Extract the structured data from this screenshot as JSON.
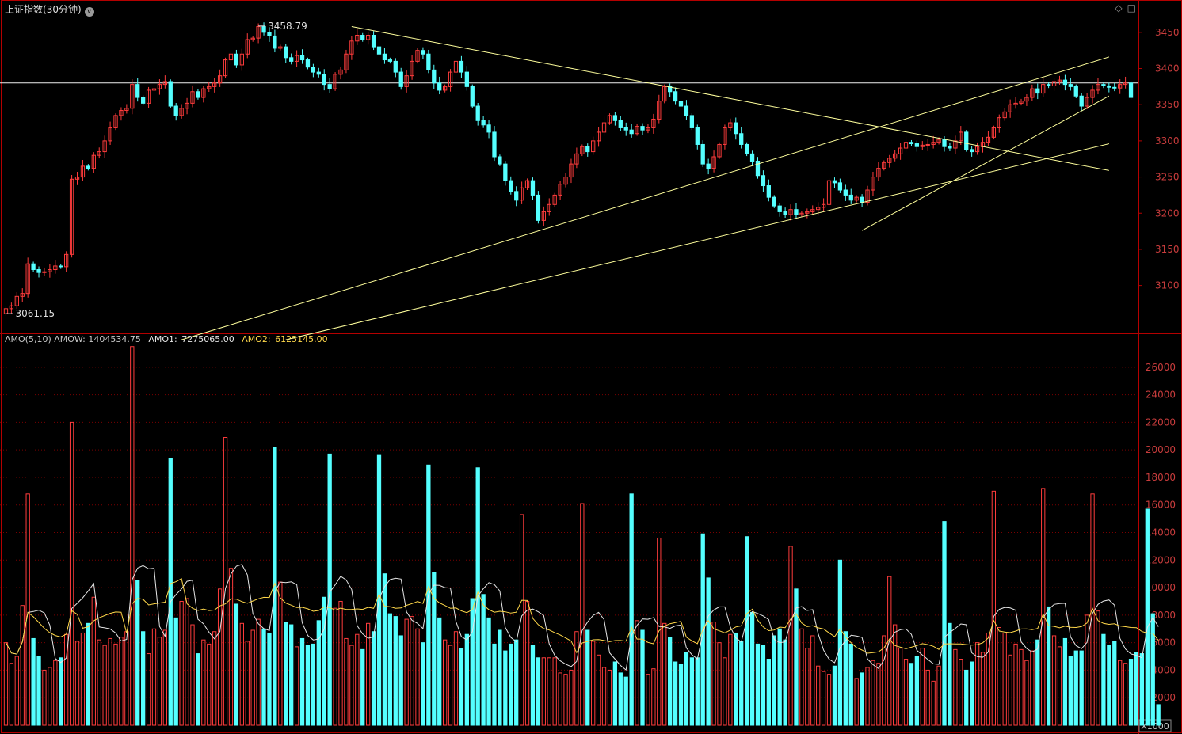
{
  "header": {
    "title": "上证指数",
    "period": "(30分钟)",
    "icons": [
      "diamond-icon",
      "window-icon"
    ]
  },
  "indicator": {
    "name": "AMO(5,10)",
    "amow_label": "AMOW:",
    "amow_value": "1404534.75",
    "amo1_label": "AMO1:",
    "amo1_value": "7275065.00",
    "amo2_label": "AMO2:",
    "amo2_value": "6125145.00",
    "unit": "X1000"
  },
  "colors": {
    "up": "#ff3c3c",
    "down": "#54ffff",
    "frame": "#b40000",
    "grid_dash": "#7a0000",
    "axis_text": "#c83c3c",
    "trendline": "#ffff9c",
    "amo1_line": "#e6e6e6",
    "amo2_line": "#ffd84a"
  },
  "chart_data": [
    {
      "type": "candlestick",
      "title": "上证指数(30分钟)",
      "y_ticks": [
        3100,
        3150,
        3200,
        3250,
        3300,
        3350,
        3400,
        3450
      ],
      "ylim": [
        3035,
        3475
      ],
      "annotations": [
        {
          "text": "3458.79",
          "value": 3458.79,
          "kind": "high"
        },
        {
          "text": "3061.15",
          "value": 3061.15,
          "kind": "low"
        }
      ],
      "horizontal_line": 3380,
      "closes": [
        3068,
        3072,
        3085,
        3089,
        3130,
        3122,
        3118,
        3119,
        3122,
        3127,
        3126,
        3143,
        3247,
        3250,
        3265,
        3262,
        3280,
        3285,
        3300,
        3318,
        3335,
        3342,
        3345,
        3378,
        3360,
        3352,
        3370,
        3372,
        3378,
        3382,
        3348,
        3335,
        3345,
        3352,
        3368,
        3360,
        3372,
        3375,
        3380,
        3390,
        3412,
        3420,
        3405,
        3420,
        3440,
        3442,
        3458,
        3450,
        3445,
        3428,
        3430,
        3415,
        3410,
        3418,
        3412,
        3402,
        3395,
        3392,
        3378,
        3372,
        3392,
        3398,
        3420,
        3438,
        3446,
        3440,
        3446,
        3430,
        3420,
        3412,
        3410,
        3395,
        3375,
        3390,
        3410,
        3425,
        3420,
        3398,
        3380,
        3370,
        3375,
        3395,
        3410,
        3395,
        3375,
        3348,
        3328,
        3322,
        3312,
        3278,
        3268,
        3245,
        3230,
        3218,
        3235,
        3245,
        3225,
        3190,
        3202,
        3212,
        3225,
        3240,
        3250,
        3268,
        3282,
        3292,
        3285,
        3300,
        3312,
        3325,
        3335,
        3328,
        3318,
        3315,
        3310,
        3320,
        3315,
        3318,
        3330,
        3355,
        3375,
        3368,
        3355,
        3348,
        3335,
        3318,
        3295,
        3268,
        3262,
        3278,
        3295,
        3318,
        3325,
        3310,
        3295,
        3282,
        3272,
        3252,
        3238,
        3222,
        3210,
        3202,
        3198,
        3205,
        3198,
        3200,
        3202,
        3205,
        3208,
        3212,
        3245,
        3242,
        3232,
        3225,
        3218,
        3222,
        3215,
        3232,
        3250,
        3262,
        3270,
        3276,
        3282,
        3290,
        3298,
        3296,
        3292,
        3294,
        3295,
        3298,
        3302,
        3292,
        3290,
        3300,
        3312,
        3288,
        3285,
        3292,
        3298,
        3305,
        3318,
        3332,
        3340,
        3350,
        3352,
        3355,
        3360,
        3372,
        3366,
        3378,
        3376,
        3382,
        3384,
        3378,
        3375,
        3362,
        3348,
        3360,
        3370,
        3378,
        3376,
        3374,
        3373,
        3378,
        3380,
        3360
      ],
      "amount_ticks": [
        2000,
        4000,
        6000,
        8000,
        10000,
        12000,
        14000,
        16000,
        18000,
        20000,
        22000,
        24000,
        26000
      ],
      "amount_unit": "X1000",
      "amount_ylim": [
        0,
        27600
      ],
      "amounts": [
        6000,
        4500,
        5000,
        8700,
        16800,
        6300,
        5000,
        4000,
        4200,
        4700,
        4900,
        6600,
        22000,
        6100,
        6700,
        7400,
        9300,
        6200,
        5800,
        6300,
        5900,
        6400,
        6800,
        27500,
        10500,
        6800,
        5200,
        7000,
        6400,
        6900,
        19400,
        7800,
        9000,
        9200,
        7300,
        5200,
        6200,
        5900,
        6800,
        9900,
        20900,
        11400,
        8800,
        7400,
        6100,
        6900,
        7700,
        7000,
        6700,
        20200,
        10400,
        7500,
        7300,
        5700,
        6300,
        5800,
        5900,
        7600,
        9300,
        19700,
        8500,
        9000,
        6300,
        5800,
        6600,
        5500,
        7400,
        6800,
        19600,
        11000,
        8100,
        7900,
        6500,
        7700,
        7900,
        7000,
        6000,
        18900,
        11100,
        7800,
        6200,
        5800,
        6800,
        5600,
        6600,
        9200,
        18700,
        9500,
        7800,
        5900,
        6900,
        5400,
        5900,
        6200,
        15300,
        9000,
        5800,
        4900,
        4900,
        4900,
        4900,
        3800,
        3700,
        4000,
        6800,
        16100,
        6900,
        6100,
        5100,
        4200,
        4000,
        4600,
        3800,
        3500,
        16800,
        7600,
        6900,
        3700,
        4100,
        13600,
        7400,
        6400,
        4600,
        4400,
        5300,
        4900,
        4900,
        13900,
        10700,
        7500,
        6000,
        4900,
        6600,
        6700,
        6100,
        13700,
        8200,
        5900,
        5800,
        4800,
        6500,
        7000,
        6200,
        13000,
        9900,
        7000,
        5600,
        6500,
        4300,
        3900,
        3700,
        4300,
        12000,
        6800,
        5900,
        3400,
        3800,
        4200,
        4700,
        4500,
        6500,
        10800,
        7300,
        5600,
        4800,
        4500,
        5000,
        5600,
        4000,
        3200,
        4300,
        14800,
        7400,
        5500,
        4800,
        4000,
        4600,
        6000,
        5300,
        6700,
        17000,
        7100,
        6700,
        5100,
        5900,
        5500,
        4700,
        5400,
        6200,
        17200,
        8600,
        6500,
        5700,
        6300,
        5000,
        5400,
        5400,
        8000,
        16800,
        8300,
        6600,
        5800,
        6100,
        4700,
        4500,
        4800,
        5300,
        5200,
        15700,
        8100,
        1500
      ]
    }
  ],
  "trendlines_data": [
    {
      "from": [
        32,
        3025
      ],
      "to": [
        201,
        3416
      ]
    },
    {
      "from": [
        51,
        3025
      ],
      "to": [
        201,
        3296
      ]
    },
    {
      "from": [
        156,
        3176
      ],
      "to": [
        201,
        3362
      ]
    },
    {
      "from": [
        63,
        3458
      ],
      "to": [
        201,
        3259
      ]
    }
  ]
}
